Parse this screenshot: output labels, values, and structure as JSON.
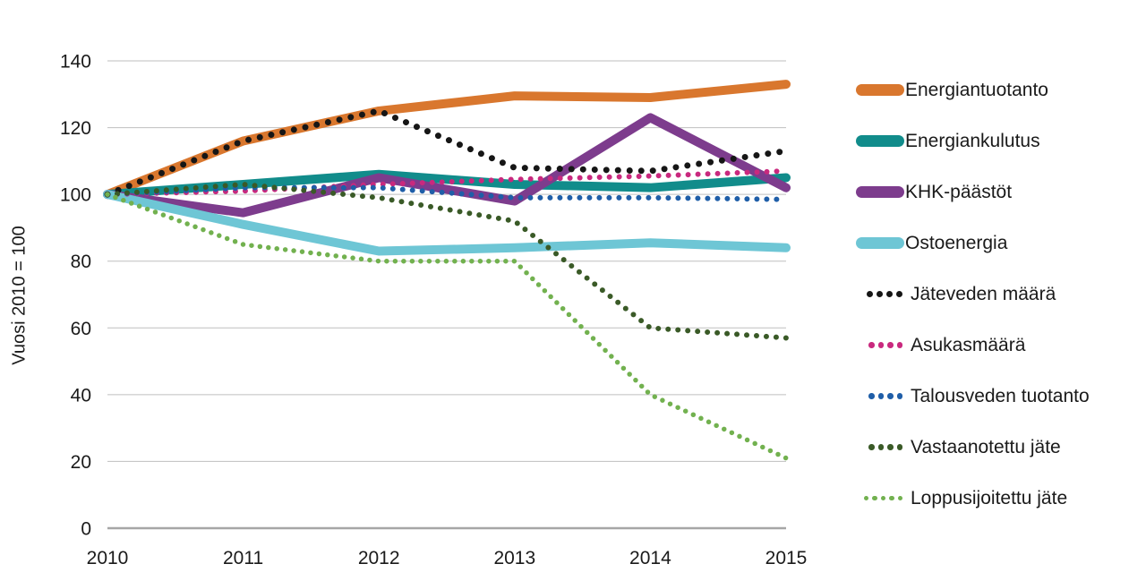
{
  "chart_data": {
    "type": "line",
    "x": [
      2010,
      2011,
      2012,
      2013,
      2014,
      2015
    ],
    "xlabel": "",
    "ylabel": "Vuosi 2010 = 100",
    "ylim": [
      0,
      150
    ],
    "yticks": [
      0,
      20,
      40,
      60,
      80,
      100,
      120,
      140
    ],
    "grid": true,
    "legend_position": "right",
    "series": [
      {
        "name": "Energiantuotanto",
        "style": "solid",
        "color": "#D9772E",
        "values": [
          100,
          116,
          125,
          129.5,
          129,
          133
        ]
      },
      {
        "name": "Energiankulutus",
        "style": "solid",
        "color": "#118C8B",
        "values": [
          100,
          103,
          106,
          103,
          102,
          105
        ]
      },
      {
        "name": "KHK-päästöt",
        "style": "solid",
        "color": "#7D3C8D",
        "values": [
          100,
          94.5,
          105,
          98,
          123,
          102
        ]
      },
      {
        "name": "Ostoenergia",
        "style": "solid",
        "color": "#6EC6D5",
        "values": [
          100,
          91,
          83,
          84,
          85.5,
          84
        ]
      },
      {
        "name": "Jäteveden määrä",
        "style": "dotted",
        "dot_size": "large",
        "color": "#161616",
        "values": [
          100,
          116,
          125,
          108,
          107,
          113
        ]
      },
      {
        "name": "Asukasmäärä",
        "style": "dotted",
        "dot_size": "medium",
        "color": "#C9297E",
        "values": [
          100,
          101,
          103,
          104.5,
          105.5,
          107
        ]
      },
      {
        "name": "Talousveden tuotanto",
        "style": "dotted",
        "dot_size": "medium",
        "color": "#1F5EA8",
        "values": [
          100,
          102,
          102,
          99,
          99,
          98.5
        ]
      },
      {
        "name": "Vastaanotettu jäte",
        "style": "dotted",
        "dot_size": "medium",
        "color": "#3A5A27",
        "values": [
          100,
          103,
          99,
          92,
          60,
          57
        ]
      },
      {
        "name": "Loppusijoitettu jäte",
        "style": "dotted",
        "dot_size": "small",
        "color": "#72B14F",
        "values": [
          100,
          85,
          80,
          80,
          40,
          21
        ]
      }
    ],
    "axis_colors": {
      "gridline": "#BFBFBF",
      "baseline": "#A6A6A6",
      "tick_text": "#1a1a1a"
    }
  }
}
